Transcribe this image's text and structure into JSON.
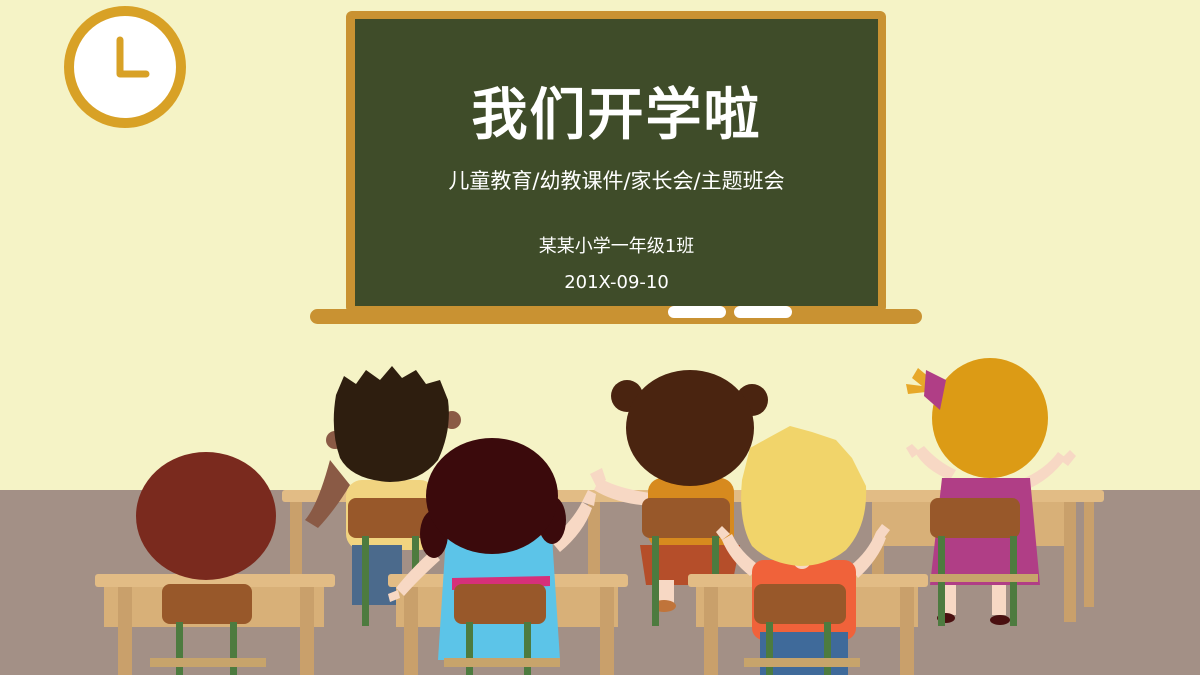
{
  "slide": {
    "title": "我们开学啦",
    "subtitle": "儿童教育/幼教课件/家长会/主题班会",
    "school": "某某小学一年级1班",
    "date": "201X-09-10"
  },
  "colors": {
    "wall": "#f5f3c6",
    "floor": "#a39086",
    "chalkboard": "#3f4c29",
    "board_frame": "#c99232",
    "clock_ring": "#d8a126",
    "desk": "#e2bc85",
    "chair_back": "#98582a",
    "chair_leg": "#4d7b3f"
  },
  "icons": {
    "clock": "clock-icon"
  }
}
